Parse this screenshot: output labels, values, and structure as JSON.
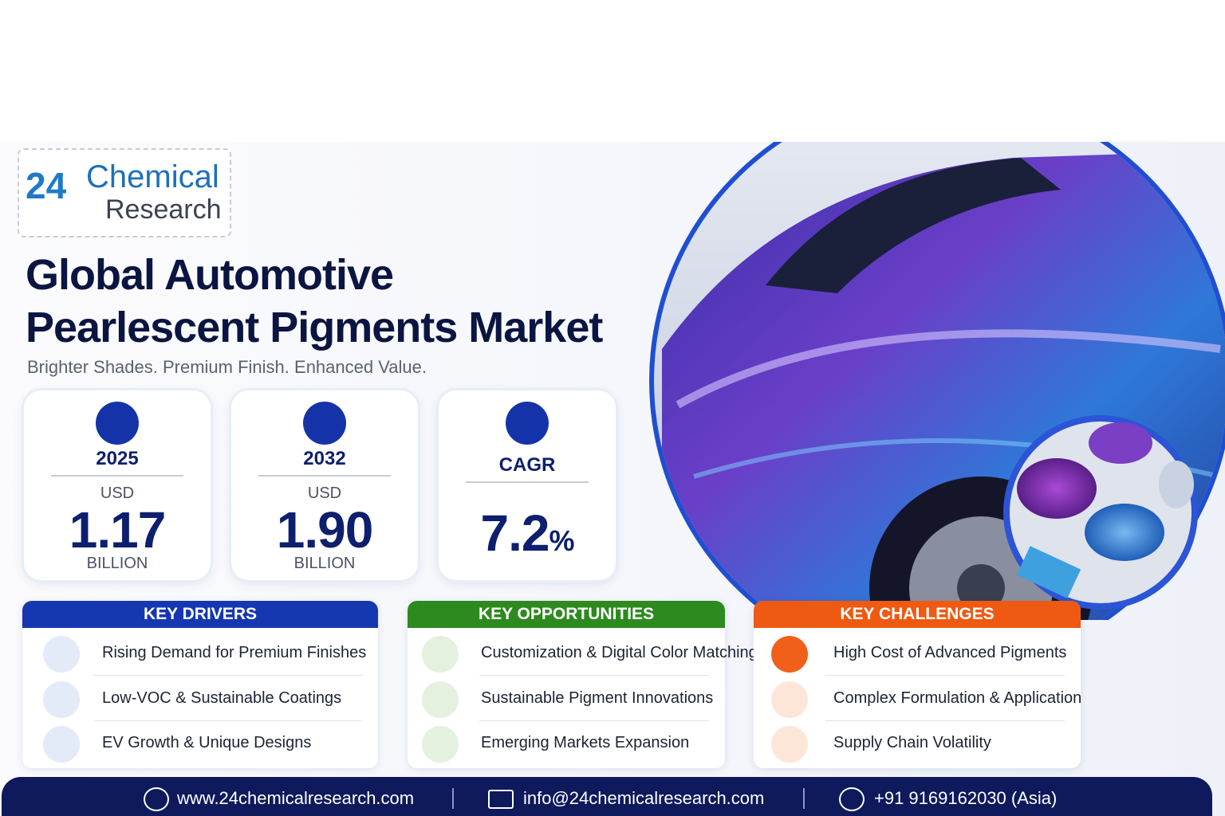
{
  "header": {
    "logo": {
      "number": "24",
      "line1": "Chemical",
      "line2": "Research"
    },
    "title": [
      "Global Automotive",
      "Pearlescent Pigments Market"
    ],
    "subtitle": "Brighter Shades. Premium Finish. Enhanced Value."
  },
  "stats": [
    {
      "label": "2025",
      "currency": "USD",
      "value": "1.17",
      "scale": "BILLION"
    },
    {
      "label": "2032",
      "currency": "USD",
      "value": "1.90",
      "scale": "BILLION"
    },
    {
      "label": "CAGR",
      "value": "7.2",
      "unit": "%"
    }
  ],
  "sections": [
    {
      "title": "KEY DRIVERS",
      "items": [
        "Rising Demand for Premium Finishes",
        "Low-VOC & Sustainable Coatings",
        "EV Growth & Unique Designs"
      ]
    },
    {
      "title": "KEY OPPORTUNITIES",
      "items": [
        "Customization & Digital Color Matching",
        "Sustainable Pigment Innovations",
        "Emerging Markets Expansion"
      ]
    },
    {
      "title": "KEY CHALLENGES",
      "items": [
        "High Cost of Advanced Pigments",
        "Complex Formulation & Application",
        "Supply Chain Volatility"
      ]
    }
  ],
  "footer": {
    "website": "www.24chemicalresearch.com",
    "email": "info@24chemicalresearch.com",
    "phone": "+91 9169162030 (Asia)"
  }
}
